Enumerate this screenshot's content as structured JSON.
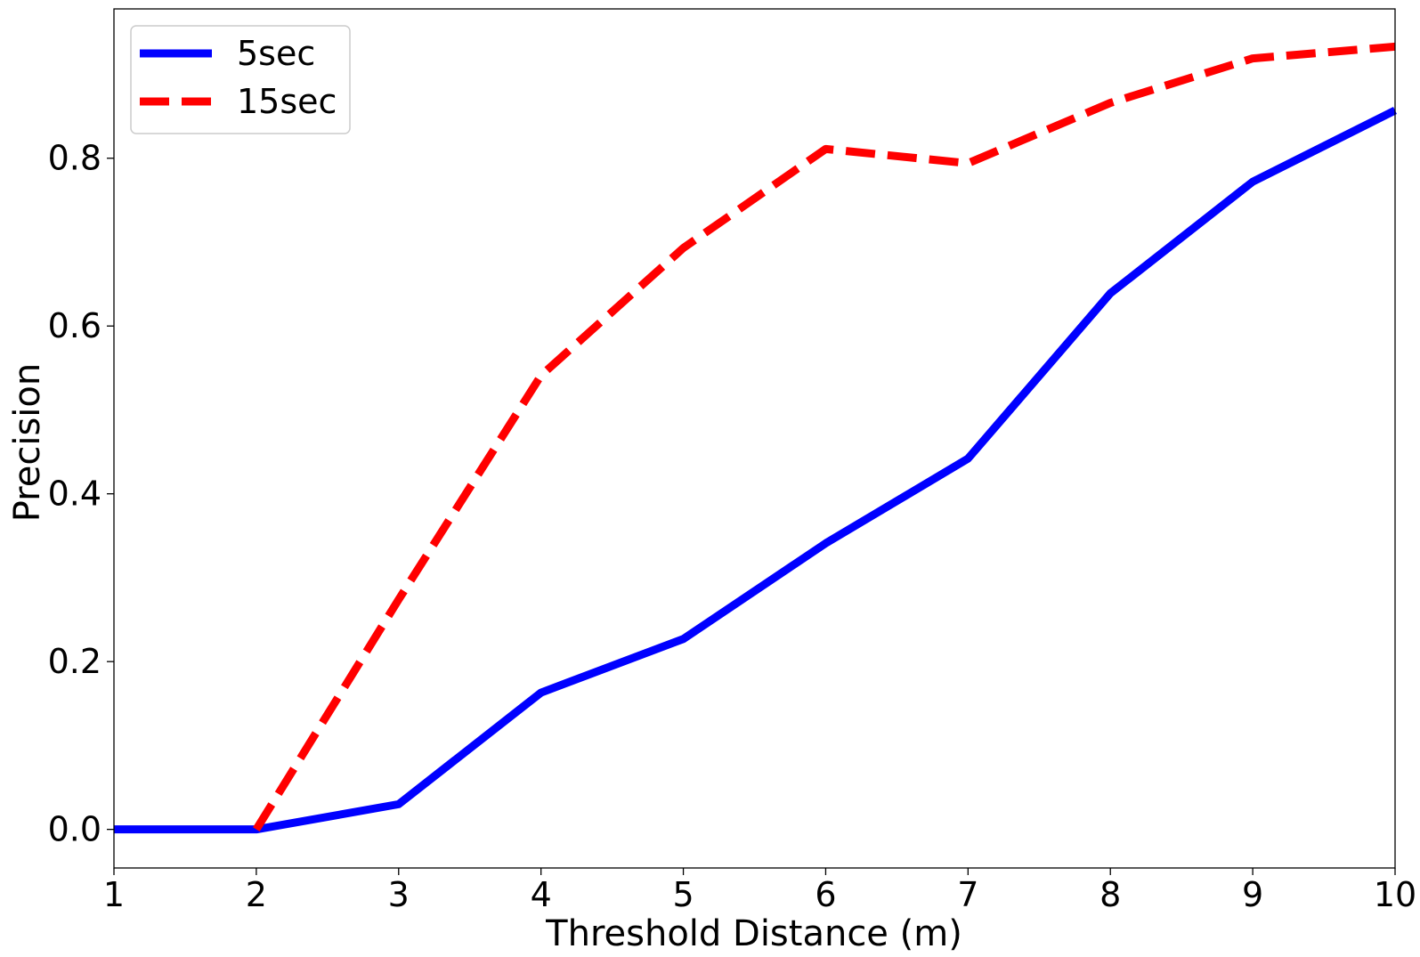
{
  "chart_data": {
    "type": "line",
    "title": "",
    "xlabel": "Threshold Distance (m)",
    "ylabel": "Precision",
    "xlim": [
      1,
      10
    ],
    "ylim": [
      -0.046,
      0.978
    ],
    "xticks": [
      1,
      2,
      3,
      4,
      5,
      6,
      7,
      8,
      9,
      10
    ],
    "yticks": [
      0.0,
      0.2,
      0.4,
      0.6,
      0.8
    ],
    "ytick_labels": [
      "0.0",
      "0.2",
      "0.4",
      "0.6",
      "0.8"
    ],
    "grid": false,
    "legend_position": "top-left",
    "x": [
      1,
      2,
      3,
      4,
      5,
      6,
      7,
      8,
      9,
      10
    ],
    "series": [
      {
        "name": "5sec",
        "color": "#0000ff",
        "style": "solid",
        "values": [
          0.0,
          0.0,
          0.03,
          0.163,
          0.227,
          0.341,
          0.442,
          0.639,
          0.772,
          0.857
        ]
      },
      {
        "name": "15sec",
        "color": "#ff0000",
        "style": "dashed",
        "values": [
          null,
          0.0,
          0.274,
          0.541,
          0.693,
          0.811,
          0.794,
          0.866,
          0.919,
          0.933
        ]
      }
    ]
  }
}
